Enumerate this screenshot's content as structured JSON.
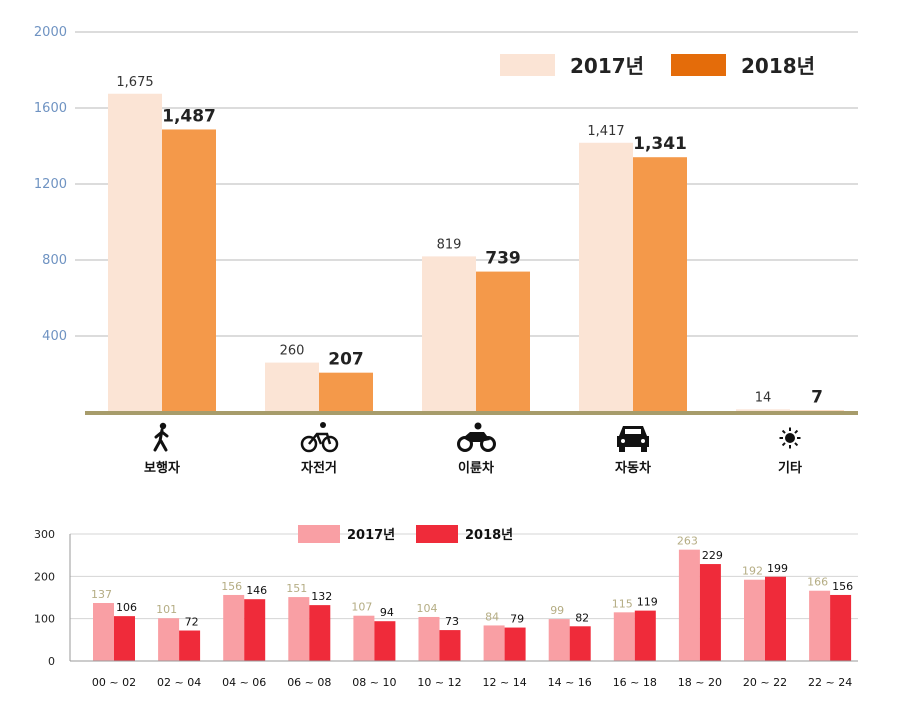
{
  "colors": {
    "c1_2017": "#fbe4d5",
    "c1_2018": "#f4994a",
    "c1_legend_2018": "#e46c0a",
    "c1_axis": "#a79c6b",
    "c2_2017": "#f99fa4",
    "c2_2018": "#ef2b3a",
    "c2_label_2017": "#b5ad84",
    "grid": "#c8c8c8"
  },
  "chart_data": [
    {
      "type": "bar",
      "title": "",
      "xlabel": "",
      "ylabel": "",
      "ylim": [
        0,
        2000
      ],
      "yticks": [
        "400",
        "800",
        "1200",
        "1600",
        "2000"
      ],
      "categories": [
        "보행자",
        "자전거",
        "이륜차",
        "자동차",
        "기타"
      ],
      "icons": [
        "pedestrian-icon",
        "bicycle-icon",
        "motorcycle-icon",
        "car-icon",
        "sun-icon"
      ],
      "legend": "top-right",
      "series": [
        {
          "name": "2017년",
          "values": [
            1675,
            260,
            819,
            1417,
            14
          ],
          "labels": [
            "1,675",
            "260",
            "819",
            "1,417",
            "14"
          ]
        },
        {
          "name": "2018년",
          "values": [
            1487,
            207,
            739,
            1341,
            7
          ],
          "labels": [
            "1,487",
            "207",
            "739",
            "1,341",
            "7"
          ]
        }
      ]
    },
    {
      "type": "bar",
      "title": "",
      "xlabel": "",
      "ylabel": "",
      "ylim": [
        0,
        300
      ],
      "yticks": [
        "0",
        "100",
        "200",
        "300"
      ],
      "categories": [
        "00 ~ 02",
        "02 ~ 04",
        "04 ~ 06",
        "06 ~ 08",
        "08 ~ 10",
        "10 ~ 12",
        "12 ~ 14",
        "14 ~ 16",
        "16 ~ 18",
        "18 ~ 20",
        "20 ~ 22",
        "22 ~ 24"
      ],
      "legend": "top-center",
      "series": [
        {
          "name": "2017년",
          "values": [
            137,
            101,
            156,
            151,
            107,
            104,
            84,
            99,
            115,
            263,
            192,
            166
          ]
        },
        {
          "name": "2018년",
          "values": [
            106,
            72,
            146,
            132,
            94,
            73,
            79,
            82,
            119,
            229,
            199,
            156
          ]
        }
      ]
    }
  ]
}
